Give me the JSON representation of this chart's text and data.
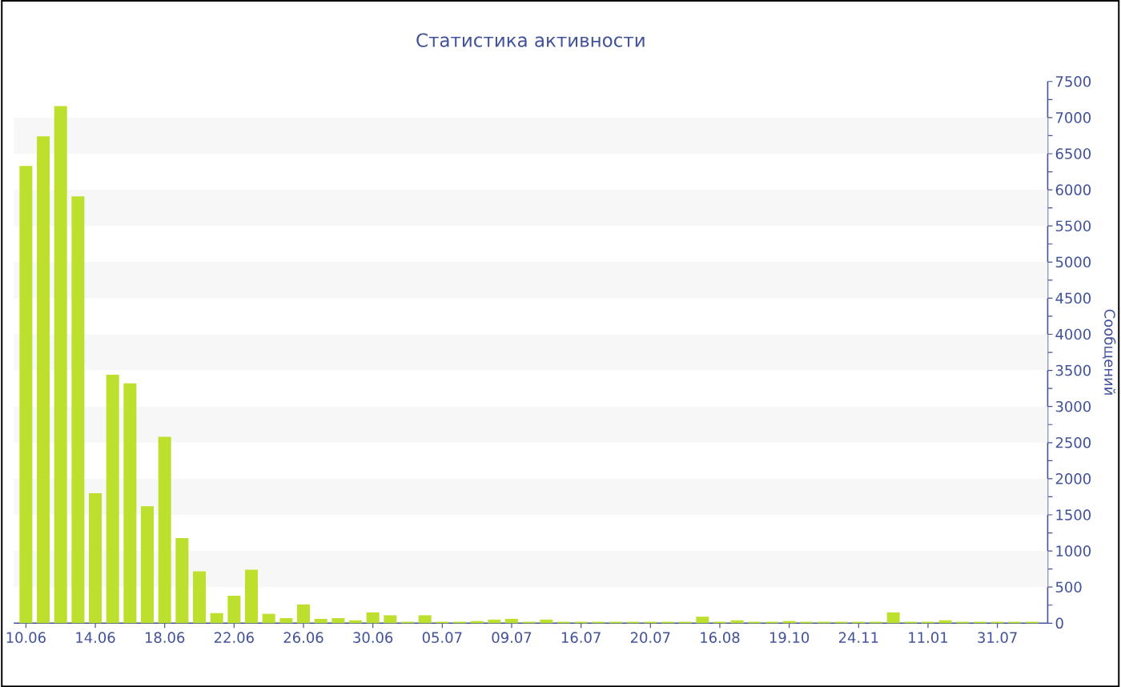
{
  "chart_data": {
    "type": "bar",
    "title": "Статистика активности",
    "ylabel": "Сообщений",
    "categories": [
      "10.06",
      null,
      null,
      null,
      "14.06",
      null,
      null,
      null,
      "18.06",
      null,
      null,
      null,
      "22.06",
      null,
      null,
      null,
      "26.06",
      null,
      null,
      null,
      "30.06",
      null,
      null,
      null,
      "05.07",
      null,
      null,
      null,
      "09.07",
      null,
      null,
      null,
      "16.07",
      null,
      null,
      null,
      "20.07",
      null,
      null,
      null,
      "16.08",
      null,
      null,
      null,
      "19.10",
      null,
      null,
      null,
      "24.11",
      null,
      null,
      null,
      "11.01",
      null,
      null,
      null,
      "31.07",
      null,
      null
    ],
    "values": [
      6330,
      6740,
      7160,
      5910,
      1800,
      3440,
      3320,
      1620,
      2580,
      1180,
      720,
      140,
      380,
      740,
      130,
      70,
      260,
      60,
      70,
      40,
      150,
      110,
      20,
      110,
      20,
      20,
      30,
      50,
      60,
      20,
      50,
      20,
      20,
      20,
      20,
      20,
      20,
      20,
      20,
      90,
      20,
      40,
      20,
      20,
      30,
      20,
      20,
      20,
      20,
      20,
      150,
      20,
      20,
      40,
      20,
      20,
      20,
      20,
      20
    ],
    "color": "#bde02e",
    "ylim": [
      0,
      7500
    ],
    "yticks": [
      0,
      {
        "value": 250,
        "label": null
      },
      500,
      {
        "value": 750,
        "label": null
      },
      1000,
      {
        "value": 1250,
        "label": null
      },
      1500,
      {
        "value": 1750,
        "label": null
      },
      2000,
      {
        "value": 2250,
        "label": null
      },
      2500,
      {
        "value": 2750,
        "label": null
      },
      3000,
      {
        "value": 3250,
        "label": null
      },
      3500,
      {
        "value": 3750,
        "label": null
      },
      4000,
      {
        "value": 4250,
        "label": null
      },
      4500,
      {
        "value": 4750,
        "label": null
      },
      5000,
      {
        "value": 5250,
        "label": null
      },
      5500,
      {
        "value": 5750,
        "label": null
      },
      6000,
      {
        "value": 6250,
        "label": null
      },
      6500,
      {
        "value": 6750,
        "label": null
      },
      7000,
      {
        "value": 7250,
        "label": null
      },
      7500
    ],
    "bands": [
      {
        "axis": "y",
        "from": 500,
        "to": 1000,
        "color": "#f7f7f7"
      },
      {
        "axis": "y",
        "from": 1500,
        "to": 2000,
        "color": "#f7f7f7"
      },
      {
        "axis": "y",
        "from": 2500,
        "to": 3000,
        "color": "#f7f7f7"
      },
      {
        "axis": "y",
        "from": 3500,
        "to": 4000,
        "color": "#f7f7f7"
      },
      {
        "axis": "y",
        "from": 4500,
        "to": 5000,
        "color": "#f7f7f7"
      },
      {
        "axis": "y",
        "from": 5500,
        "to": 6000,
        "color": "#f7f7f7"
      },
      {
        "axis": "y",
        "from": 6500,
        "to": 7000,
        "color": "#f7f7f7"
      }
    ]
  }
}
